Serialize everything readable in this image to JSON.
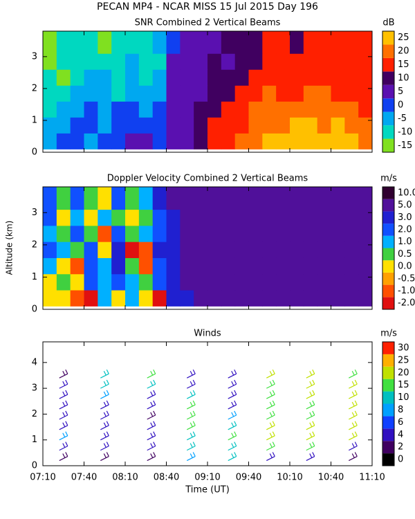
{
  "title": "PECAN MP4 - NCAR MISS  15 Jul 2015 Day 196",
  "x_axis": {
    "xlim": [
      430,
      670
    ],
    "xlabel": "Time (UT)",
    "xticks": [
      {
        "value": 430,
        "label": "07:10"
      },
      {
        "value": 460,
        "label": "07:40"
      },
      {
        "value": 490,
        "label": "08:10"
      },
      {
        "value": 520,
        "label": "08:40"
      },
      {
        "value": 550,
        "label": "09:10"
      },
      {
        "value": 580,
        "label": "09:40"
      },
      {
        "value": 610,
        "label": "10:10"
      },
      {
        "value": 640,
        "label": "10:40"
      },
      {
        "value": 670,
        "label": "11:10"
      }
    ]
  },
  "ylabel": "Altitude (km)",
  "chart_data": [
    {
      "type": "heatmap",
      "title": "SNR Combined 2 Vertical Beams",
      "ylim": [
        0,
        3.8
      ],
      "yticks": [
        0,
        1,
        2,
        3
      ],
      "x_edges": [
        430,
        440,
        450,
        460,
        470,
        480,
        490,
        500,
        510,
        520,
        530,
        540,
        550,
        560,
        570,
        580,
        590,
        600,
        610,
        620,
        630,
        640,
        650,
        660,
        670
      ],
      "y_edges": [
        0.1,
        0.6,
        1.1,
        1.6,
        2.1,
        2.6,
        3.1,
        3.8
      ],
      "values": [
        [
          -5,
          0,
          0,
          -5,
          0,
          0,
          5,
          5,
          0,
          5,
          5,
          10,
          15,
          15,
          20,
          20,
          25,
          25,
          25,
          25,
          25,
          25,
          25,
          20
        ],
        [
          -5,
          -5,
          0,
          0,
          -5,
          0,
          0,
          0,
          0,
          5,
          5,
          10,
          15,
          15,
          15,
          20,
          20,
          20,
          25,
          25,
          20,
          25,
          20,
          20
        ],
        [
          -10,
          -5,
          -5,
          0,
          -5,
          0,
          0,
          -5,
          0,
          5,
          5,
          10,
          10,
          15,
          15,
          20,
          20,
          20,
          20,
          20,
          20,
          20,
          20,
          15
        ],
        [
          -10,
          -10,
          -5,
          -5,
          -5,
          -10,
          -5,
          -5,
          -5,
          5,
          5,
          5,
          10,
          10,
          15,
          15,
          20,
          15,
          15,
          20,
          20,
          15,
          15,
          15
        ],
        [
          -10,
          -15,
          -10,
          -5,
          -5,
          -10,
          -5,
          -10,
          -5,
          5,
          5,
          5,
          10,
          10,
          10,
          15,
          15,
          15,
          15,
          15,
          15,
          15,
          15,
          15
        ],
        [
          -15,
          -10,
          -10,
          -10,
          -10,
          -10,
          -5,
          -10,
          -10,
          5,
          5,
          5,
          10,
          5,
          10,
          10,
          15,
          15,
          15,
          15,
          15,
          15,
          15,
          15
        ],
        [
          -15,
          -10,
          -10,
          -10,
          -15,
          -10,
          -10,
          -10,
          -5,
          0,
          5,
          5,
          5,
          10,
          10,
          10,
          15,
          15,
          10,
          15,
          15,
          15,
          15,
          15
        ]
      ],
      "colorbar": {
        "label": "dB",
        "ticks": [
          -15,
          -10,
          -5,
          0,
          5,
          10,
          15,
          20,
          25
        ],
        "colors": [
          "#80e020",
          "#00d8c0",
          "#00a8f0",
          "#1040f0",
          "#5a10b0",
          "#400060",
          "#ff2000",
          "#ff7000",
          "#ffc000"
        ]
      }
    },
    {
      "type": "heatmap",
      "title": "Doppler Velocity Combined 2 Vertical Beams",
      "ylim": [
        0,
        3.8
      ],
      "yticks": [
        0,
        1,
        2,
        3
      ],
      "x_edges": [
        430,
        440,
        450,
        460,
        470,
        480,
        490,
        500,
        510,
        520,
        530,
        540,
        550,
        560,
        570,
        580,
        590,
        600,
        610,
        620,
        630,
        640,
        650,
        660,
        670
      ],
      "y_edges": [
        0.1,
        0.6,
        1.1,
        1.6,
        2.1,
        2.6,
        3.1,
        3.8
      ],
      "values": [
        [
          0,
          0.2,
          -0.6,
          -1.5,
          1.2,
          0.3,
          1.5,
          0.2,
          -1.5,
          3.5,
          4,
          6,
          6,
          6,
          6,
          6,
          6,
          6,
          6,
          6,
          6,
          6,
          6,
          6
        ],
        [
          0.2,
          0.6,
          0.3,
          2.5,
          1.2,
          2.5,
          1.5,
          0.6,
          2.5,
          3.5,
          6,
          6,
          6,
          6,
          6,
          6,
          6,
          6,
          6,
          6,
          6,
          6,
          6,
          6
        ],
        [
          1.5,
          0.3,
          -0.6,
          2.5,
          1.5,
          3.5,
          0.6,
          -0.6,
          2.5,
          4,
          6,
          6,
          6,
          6,
          6,
          6,
          6,
          6,
          6,
          6,
          6,
          6,
          6,
          6
        ],
        [
          2.5,
          1.5,
          0.6,
          2.5,
          0.3,
          3.5,
          -1.5,
          -0.6,
          3.5,
          4,
          6,
          6,
          6,
          6,
          6,
          6,
          6,
          6,
          6,
          6,
          6,
          6,
          6,
          6
        ],
        [
          1.5,
          0.6,
          2.5,
          0.6,
          -0.6,
          2.5,
          0.6,
          1.5,
          2.5,
          3.5,
          6,
          6,
          6,
          6,
          6,
          6,
          6,
          6,
          6,
          6,
          6,
          6,
          6,
          6
        ],
        [
          2.5,
          0.3,
          1.5,
          0.3,
          1.5,
          0.6,
          0.3,
          0.6,
          2.5,
          4,
          6,
          6,
          6,
          6,
          6,
          6,
          6,
          6,
          6,
          6,
          6,
          6,
          6,
          6
        ],
        [
          2.5,
          0.6,
          2.5,
          0.6,
          0.3,
          2.5,
          0.6,
          1.5,
          3.5,
          6,
          6,
          6,
          6,
          6,
          6,
          6,
          6,
          6,
          6,
          6,
          6,
          6,
          6,
          6
        ]
      ],
      "colorbar": {
        "label": "m/s",
        "ticks": [
          {
            "value": -2,
            "label": "-2.0"
          },
          {
            "value": -1,
            "label": "-1.0"
          },
          {
            "value": -0.5,
            "label": "-0.5"
          },
          {
            "value": 0,
            "label": "0.0"
          },
          {
            "value": 0.5,
            "label": "0.5"
          },
          {
            "value": 1,
            "label": "1.0"
          },
          {
            "value": 2,
            "label": "2.0"
          },
          {
            "value": 3,
            "label": "3.0"
          },
          {
            "value": 5,
            "label": "5.0"
          },
          {
            "value": 10,
            "label": "10.0"
          }
        ],
        "colors": [
          "#e01010",
          "#ff5000",
          "#ffa000",
          "#ffe000",
          "#40d040",
          "#00b0ff",
          "#1050ff",
          "#2020d0",
          "#50109a",
          "#300030"
        ]
      }
    },
    {
      "type": "barbs",
      "title": "Winds",
      "ylim": [
        0,
        4.8
      ],
      "yticks": [
        0,
        1,
        2,
        3,
        4
      ],
      "heights": [
        0.2,
        0.6,
        1.0,
        1.4,
        1.8,
        2.2,
        2.6,
        3.0,
        3.4
      ],
      "profiles": [
        {
          "x": 442,
          "speeds": [
            3,
            5,
            9,
            5,
            5,
            4,
            5,
            5,
            3
          ]
        },
        {
          "x": 472,
          "speeds": [
            3,
            5,
            5,
            4,
            5,
            5,
            9,
            11,
            11
          ]
        },
        {
          "x": 506,
          "speeds": [
            3,
            5,
            4,
            5,
            3,
            5,
            4,
            11,
            16
          ]
        },
        {
          "x": 535,
          "speeds": [
            9,
            11,
            12,
            16,
            16,
            17,
            11,
            5,
            4
          ]
        },
        {
          "x": 565,
          "speeds": [
            11,
            13,
            16,
            12,
            9,
            5,
            5,
            4,
            5
          ]
        },
        {
          "x": 593,
          "speeds": [
            5,
            17,
            21,
            21,
            19,
            19,
            17,
            17,
            21
          ]
        },
        {
          "x": 622,
          "speeds": [
            5,
            17,
            21,
            21,
            19,
            19,
            21,
            22,
            22
          ]
        },
        {
          "x": 653,
          "speeds": [
            3,
            4,
            21,
            21,
            22,
            23,
            22,
            21,
            17
          ]
        }
      ],
      "colorbar": {
        "label": "m/s",
        "ticks": [
          0,
          2,
          4,
          6,
          8,
          10,
          15,
          20,
          25,
          30
        ],
        "colors": [
          "#000000",
          "#400060",
          "#3010c0",
          "#1040ff",
          "#00a0ff",
          "#00c0c0",
          "#40e040",
          "#c0e000",
          "#ffb000",
          "#ff2000"
        ]
      }
    }
  ]
}
